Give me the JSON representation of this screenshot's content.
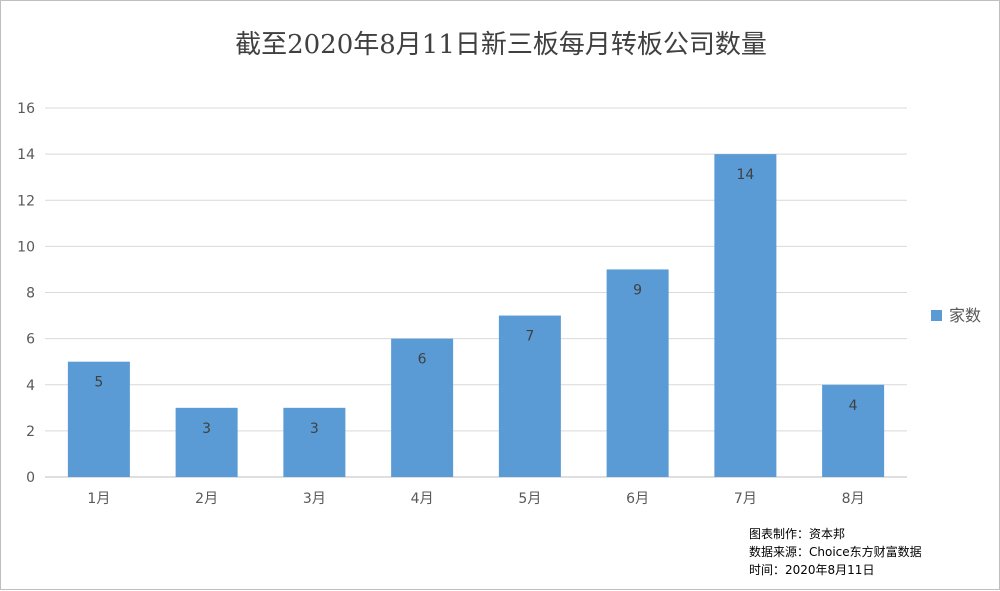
{
  "chart_data": {
    "type": "bar",
    "title": "截至2020年8月11日新三板每月转板公司数量",
    "categories": [
      "1月",
      "2月",
      "3月",
      "4月",
      "5月",
      "6月",
      "7月",
      "8月"
    ],
    "series": [
      {
        "name": "家数",
        "values": [
          5,
          3,
          3,
          6,
          7,
          9,
          14,
          4
        ]
      }
    ],
    "y_ticks": [
      "0",
      "2",
      "4",
      "6",
      "8",
      "10",
      "12",
      "14",
      "16"
    ],
    "ylim": [
      0,
      16
    ],
    "grid": true,
    "legend_position": "right",
    "bar_color": "#5b9bd5",
    "grid_color": "#d9d9d9"
  },
  "source_notes": {
    "line1": "图表制作：资本邦",
    "line2": "数据来源：Choice东方财富数据",
    "line3": "时间：2020年8月11日"
  }
}
